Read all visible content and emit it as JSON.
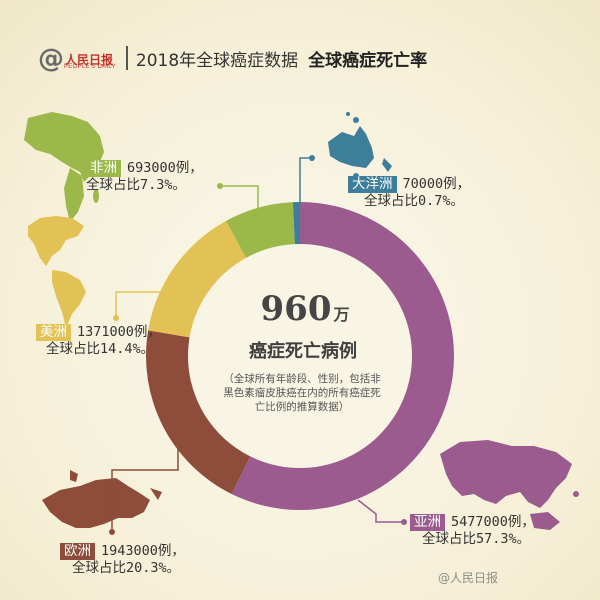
{
  "header": {
    "logo_text": "人民日报",
    "logo_en": "PEOPLE'S DAILY",
    "title": "2018年全球癌症数据",
    "subtitle": "全球癌症死亡率"
  },
  "center": {
    "number": "960",
    "unit": "万",
    "title": "癌症死亡病例",
    "note": "（全球所有年龄段、性别，包括非黑色素瘤皮肤癌在内的所有癌症死亡比例的推算数据）"
  },
  "chart_data": {
    "type": "pie",
    "donut": true,
    "total_label": "960万",
    "slices": [
      {
        "name": "亚洲",
        "cases": 5477000,
        "percent": 57.3,
        "color": "#9b5b8e",
        "cases_text": "5477000例，",
        "share_text": "全球占比57.3%。"
      },
      {
        "name": "欧洲",
        "cases": 1943000,
        "percent": 20.3,
        "color": "#8d4d3a",
        "cases_text": "1943000例，",
        "share_text": "全球占比20.3%。"
      },
      {
        "name": "美洲",
        "cases": 1371000,
        "percent": 14.4,
        "color": "#e2c155",
        "cases_text": "1371000例，",
        "share_text": "全球占比14.4%。"
      },
      {
        "name": "非洲",
        "cases": 693000,
        "percent": 7.3,
        "color": "#9cb84b",
        "cases_text": "693000例，",
        "share_text": "全球占比7.3%。"
      },
      {
        "name": "大洋洲",
        "cases": 70000,
        "percent": 0.7,
        "color": "#3d7e9a",
        "cases_text": "70000例，",
        "share_text": "全球占比0.7%。"
      }
    ]
  },
  "watermark": "@人民日报",
  "icons": [
    "africa-map-icon",
    "oceania-map-icon",
    "americas-map-icon",
    "europe-map-icon",
    "asia-map-icon"
  ]
}
